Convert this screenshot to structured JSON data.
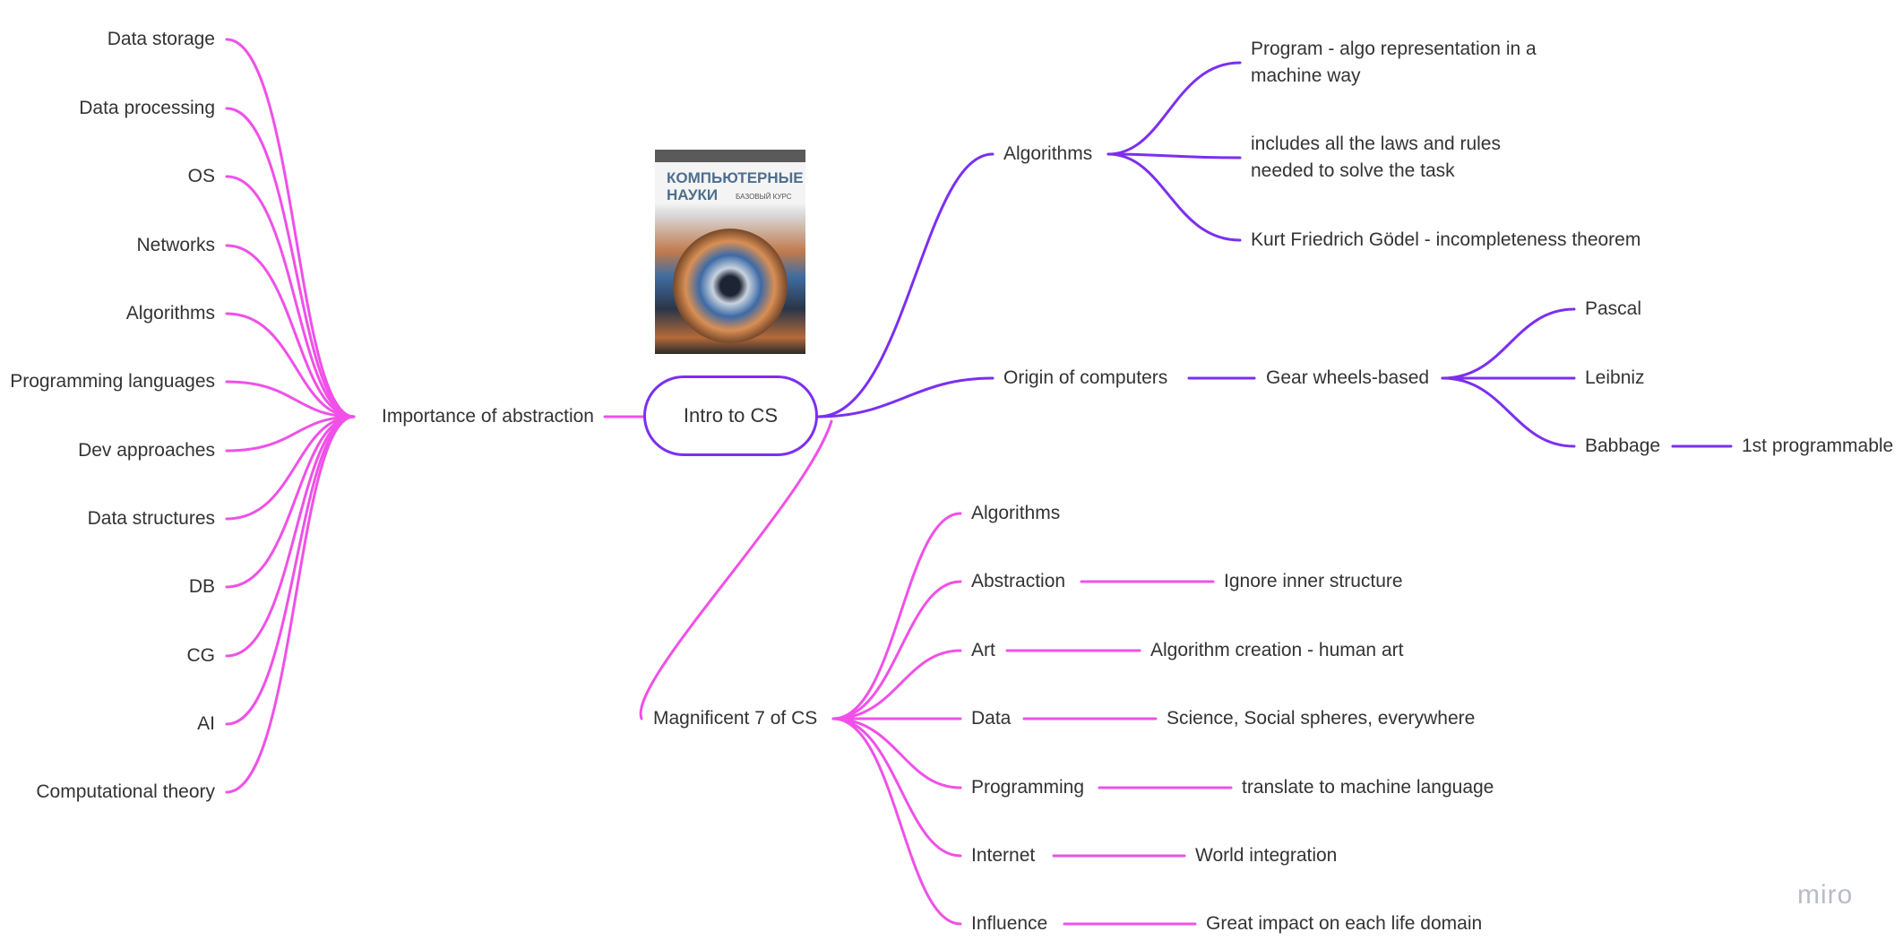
{
  "root": {
    "label": "Intro to CS"
  },
  "colors": {
    "purple": "#7b2ff0",
    "pink": "#f050e8",
    "text": "#333333",
    "logo": "#b8bcc8"
  },
  "book": {
    "title": "КОМПЬЮТЕРНЫЕ НАУКИ",
    "subtitle": "БАЗОВЫЙ КУРС"
  },
  "abstraction": {
    "label": "Importance of abstraction",
    "items": [
      "Data storage",
      "Data processing",
      "OS",
      "Networks",
      "Algorithms",
      "Programming languages",
      "Dev approaches",
      "Data structures",
      "DB",
      "CG",
      "AI",
      "Computational theory"
    ]
  },
  "algorithms": {
    "label": "Algorithms",
    "children": [
      "Program - algo representation in a machine way",
      "includes all the laws and rules needed to solve the task",
      "Kurt Friedrich Gödel - incompleteness theorem"
    ]
  },
  "origin": {
    "label": "Origin of computers",
    "gear": "Gear wheels-based",
    "children": [
      "Pascal",
      "Leibniz",
      "Babbage"
    ],
    "babbage_note": "1st programmable"
  },
  "magnificent": {
    "label": "Magnificent 7 of CS",
    "items": [
      {
        "label": "Algorithms",
        "note": ""
      },
      {
        "label": "Abstraction",
        "note": "Ignore inner structure"
      },
      {
        "label": "Art",
        "note": "Algorithm creation - human art"
      },
      {
        "label": "Data",
        "note": "Science, Social spheres, everywhere"
      },
      {
        "label": "Programming",
        "note": "translate to machine language"
      },
      {
        "label": "Internet",
        "note": "World integration"
      },
      {
        "label": "Influence",
        "note": "Great impact on each life domain"
      }
    ]
  },
  "branding": {
    "logo": "miro"
  }
}
